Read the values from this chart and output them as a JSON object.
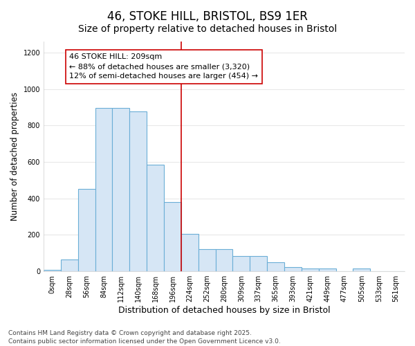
{
  "title": "46, STOKE HILL, BRISTOL, BS9 1ER",
  "subtitle": "Size of property relative to detached houses in Bristol",
  "xlabel": "Distribution of detached houses by size in Bristol",
  "ylabel": "Number of detached properties",
  "bar_labels": [
    "0sqm",
    "28sqm",
    "56sqm",
    "84sqm",
    "112sqm",
    "140sqm",
    "168sqm",
    "196sqm",
    "224sqm",
    "252sqm",
    "280sqm",
    "309sqm",
    "337sqm",
    "365sqm",
    "393sqm",
    "421sqm",
    "449sqm",
    "477sqm",
    "505sqm",
    "533sqm",
    "561sqm"
  ],
  "bar_values": [
    8,
    65,
    450,
    895,
    895,
    875,
    585,
    380,
    205,
    120,
    120,
    85,
    85,
    50,
    22,
    15,
    15,
    2,
    15,
    2,
    2
  ],
  "bar_color": "#d6e6f5",
  "bar_edge_color": "#6aaed6",
  "background_color": "#ffffff",
  "grid_color": "#e8e8e8",
  "vline_x": 7.5,
  "vline_color": "#cc0000",
  "annotation_text": "46 STOKE HILL: 209sqm\n← 88% of detached houses are smaller (3,320)\n12% of semi-detached houses are larger (454) →",
  "annotation_box_color": "white",
  "annotation_box_edge_color": "#cc0000",
  "ylim": [
    0,
    1260
  ],
  "yticks": [
    0,
    200,
    400,
    600,
    800,
    1000,
    1200
  ],
  "footer_text": "Contains HM Land Registry data © Crown copyright and database right 2025.\nContains public sector information licensed under the Open Government Licence v3.0.",
  "title_fontsize": 12,
  "subtitle_fontsize": 10,
  "tick_fontsize": 7,
  "ylabel_fontsize": 8.5,
  "xlabel_fontsize": 9,
  "footer_fontsize": 6.5,
  "annot_fontsize": 8
}
